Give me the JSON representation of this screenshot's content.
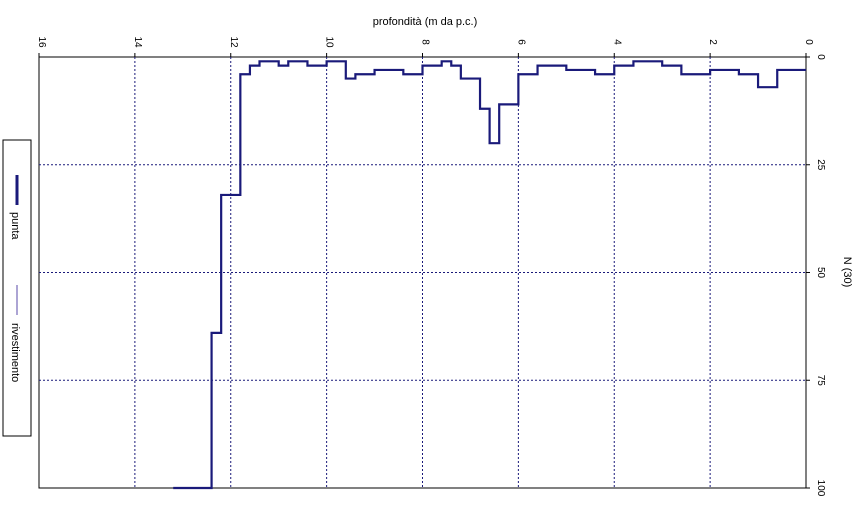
{
  "chart_data": {
    "type": "line",
    "title": "",
    "xlabel": "profondità (m da p.c.)",
    "ylabel": "N (30)",
    "xlim": [
      16,
      0
    ],
    "ylim": [
      0,
      100
    ],
    "x_ticks": [
      "16",
      "14",
      "12",
      "10",
      "8",
      "6",
      "4",
      "2",
      "0"
    ],
    "y_ticks": [
      "0",
      "25",
      "50",
      "75",
      "100"
    ],
    "grid": true,
    "legend_position": "left",
    "colors": {
      "punta": "#1a1a7a",
      "rivestimento": "#5a4aa8",
      "grid": "#1a1a7a"
    },
    "series": [
      {
        "name": "punta",
        "step": true,
        "x": [
          0.0,
          0.6,
          0.6,
          1.0,
          1.0,
          1.4,
          1.4,
          2.0,
          2.0,
          2.6,
          2.6,
          3.0,
          3.0,
          3.6,
          3.6,
          4.0,
          4.0,
          4.4,
          4.4,
          5.0,
          5.0,
          5.6,
          5.6,
          6.0,
          6.0,
          6.4,
          6.4,
          6.6,
          6.6,
          6.8,
          6.8,
          7.2,
          7.2,
          7.4,
          7.4,
          7.6,
          7.6,
          8.0,
          8.0,
          8.4,
          8.4,
          9.0,
          9.0,
          9.4,
          9.4,
          9.6,
          9.6,
          10.0,
          10.0,
          10.4,
          10.4,
          10.8,
          10.8,
          11.0,
          11.0,
          11.4,
          11.4,
          11.6,
          11.6,
          11.8,
          11.8,
          12.2,
          12.2,
          12.4,
          12.4,
          12.6,
          12.6,
          12.8,
          12.8,
          13.0,
          13.0,
          13.2
        ],
        "y": [
          3,
          3,
          7,
          7,
          4,
          4,
          3,
          3,
          4,
          4,
          2,
          2,
          1,
          1,
          2,
          2,
          4,
          4,
          3,
          3,
          2,
          2,
          4,
          4,
          11,
          11,
          20,
          20,
          12,
          12,
          5,
          5,
          2,
          2,
          1,
          1,
          2,
          2,
          4,
          4,
          3,
          3,
          4,
          4,
          5,
          5,
          1,
          1,
          2,
          2,
          1,
          1,
          2,
          2,
          1,
          1,
          2,
          2,
          4,
          4,
          32,
          32,
          64,
          64,
          100,
          100,
          100,
          100,
          100,
          100,
          100,
          100
        ]
      },
      {
        "name": "rivestimento",
        "x": [],
        "y": []
      }
    ]
  }
}
